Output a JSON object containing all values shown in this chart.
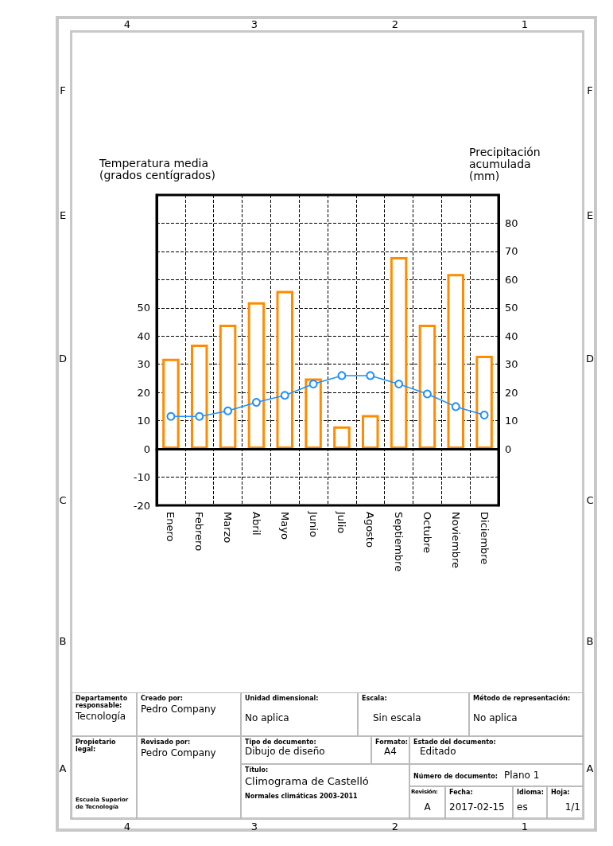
{
  "chart_data": {
    "type": "bar",
    "title": "Climograma de Castelló",
    "subtitle": "Normales climáticas 2003-2011",
    "ylabel": "Temperatura media (grados centígrados)",
    "y2label": "Precipitación acumulada (mm)",
    "categories": [
      "Enero",
      "Febrero",
      "Marzo",
      "Abril",
      "Mayo",
      "Junio",
      "Julio",
      "Agosto",
      "Septiembre",
      "Octubre",
      "Noviembre",
      "Diciembre"
    ],
    "series": [
      {
        "color": "#ff8c00",
        "values": [
          32,
          37,
          44,
          52,
          56,
          25,
          8,
          12,
          68,
          44,
          62,
          33
        ]
      },
      {
        "type": "line",
        "color": "#1e90ff",
        "values": [
          11.5,
          11.5,
          13.5,
          16.5,
          19,
          23,
          26,
          26,
          23,
          19.5,
          15,
          12
        ]
      }
    ],
    "ylim": [
      -20,
      90
    ],
    "yticks": [
      -20,
      -10,
      0,
      10,
      20,
      30,
      40,
      50
    ],
    "y2lim": [
      -20,
      90
    ],
    "y2ticks": [
      0,
      10,
      20,
      30,
      40,
      50,
      60,
      70,
      80
    ],
    "ref_lines": [
      {
        "axis": "y",
        "value": 0,
        "color": "#000000"
      }
    ],
    "grid": true,
    "marker": "circle",
    "annotations": [
      "Departamento responsable:",
      "Tecnología",
      "Creado por:",
      "Pedro Company",
      "Unidad dimensional:",
      "No aplica",
      "Escala:",
      "Sin escala",
      "Método de representación:",
      "No aplica",
      "Propietario legal:",
      "Escuela Superior de Tecnología",
      "Revisado por:",
      "Pedro Company",
      "Tipo de documento:",
      "Dibujo de diseño",
      "Formato:",
      "A4",
      "Estado del documento:",
      "Editado",
      "Título:",
      "Número de documento:",
      "Plano 1",
      "Revisión:",
      "A",
      "Fecha:",
      "2017-02-15",
      "Idioma:",
      "es",
      "Hoja:",
      "1/1",
      "4",
      "3",
      "2",
      "1",
      "F",
      "E",
      "D",
      "C",
      "B",
      "A"
    ]
  }
}
